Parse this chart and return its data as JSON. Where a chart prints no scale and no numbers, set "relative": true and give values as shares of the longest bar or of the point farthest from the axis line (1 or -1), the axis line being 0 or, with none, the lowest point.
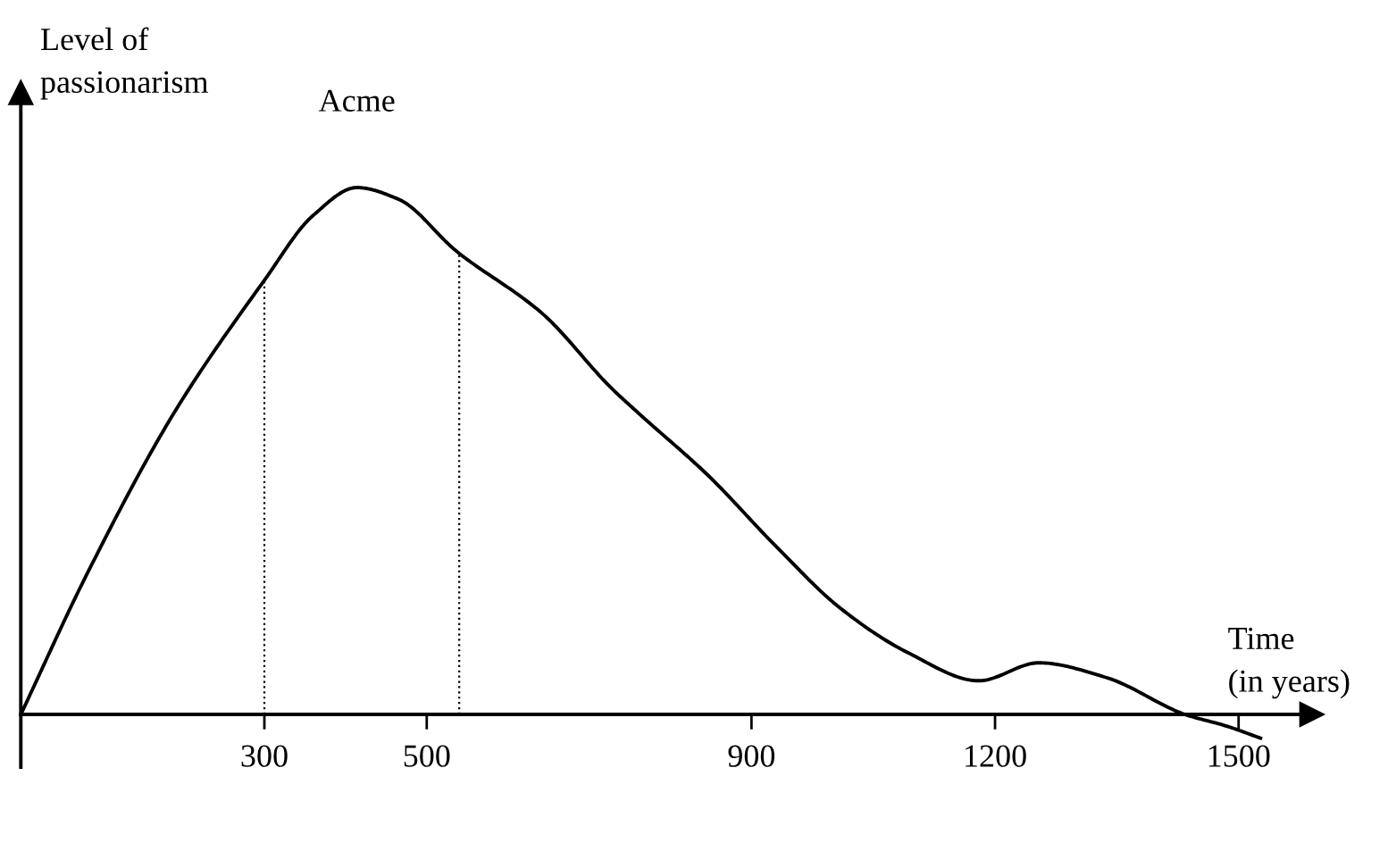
{
  "chart_data": {
    "type": "line",
    "relative": true,
    "xlabel": "Time\n(in years)",
    "ylabel": "Level of\npassionarism",
    "annotations": [
      {
        "text": "Acme",
        "x": 414,
        "y": 1
      }
    ],
    "x": [
      0,
      81,
      189,
      300,
      360,
      414,
      465,
      536,
      643,
      727,
      760,
      847,
      929,
      1010,
      1093,
      1180,
      1254,
      1337,
      1434,
      1485,
      1527
    ],
    "series": [
      {
        "color": "#000000",
        "values": [
          0,
          0.265,
          0.573,
          0.824,
          0.947,
          1.0,
          0.978,
          0.88,
          0.76,
          0.62,
          0.573,
          0.453,
          0.321,
          0.201,
          0.117,
          0.064,
          0.098,
          0.07,
          0,
          -0.022,
          -0.045
        ]
      }
    ],
    "xlim": [
      0,
      1590
    ],
    "xticks": [
      300,
      500,
      900,
      1200,
      1500
    ],
    "ref_lines": [
      {
        "axis": "x",
        "value": 300,
        "line_style": "dotted",
        "color": "#000000"
      },
      {
        "axis": "x",
        "value": 540,
        "line_style": "dotted",
        "color": "#000000"
      }
    ],
    "line_style": "solid",
    "marker": "none",
    "grid": false,
    "legend": false
  }
}
